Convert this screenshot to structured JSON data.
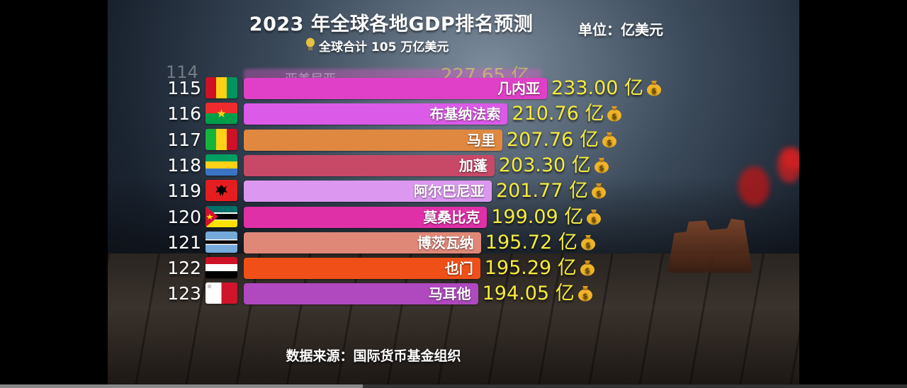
{
  "header": {
    "title": "2023 年全球各地GDP排名预测",
    "unit": "单位：亿美元",
    "subtitle": "全球合计 105 万亿美元"
  },
  "footer": {
    "source": "数据来源：国际货币基金组织"
  },
  "ghost_row": {
    "rank": "114",
    "name": "亚美尼亚",
    "value_label": "227.65 亿"
  },
  "video_progress": 0.4,
  "chart_data": {
    "type": "bar",
    "orientation": "horizontal",
    "title": "2023 年全球各地GDP排名预测",
    "unit": "亿美元",
    "unit_suffix": "亿",
    "categories": [
      "几内亚",
      "布基纳法索",
      "马里",
      "加蓬",
      "阿尔巴尼亚",
      "莫桑比克",
      "博茨瓦纳",
      "也门",
      "马耳他"
    ],
    "ranks": [
      "115",
      "116",
      "117",
      "118",
      "119",
      "120",
      "121",
      "122",
      "123"
    ],
    "values": [
      233.0,
      210.76,
      207.76,
      203.3,
      201.77,
      199.09,
      195.72,
      195.29,
      194.05
    ],
    "value_labels": [
      "233.00",
      "210.76",
      "207.76",
      "203.30",
      "201.77",
      "199.09",
      "195.72",
      "195.29",
      "194.05"
    ],
    "bar_colors": [
      "#e040c8",
      "#dc5ae8",
      "#e08840",
      "#c84868",
      "#dc98f0",
      "#e030a8",
      "#e08878",
      "#f05018",
      "#b048c0"
    ],
    "flags": [
      "guinea",
      "burkina-faso",
      "mali",
      "gabon",
      "albania",
      "mozambique",
      "botswana",
      "yemen",
      "malta"
    ]
  }
}
